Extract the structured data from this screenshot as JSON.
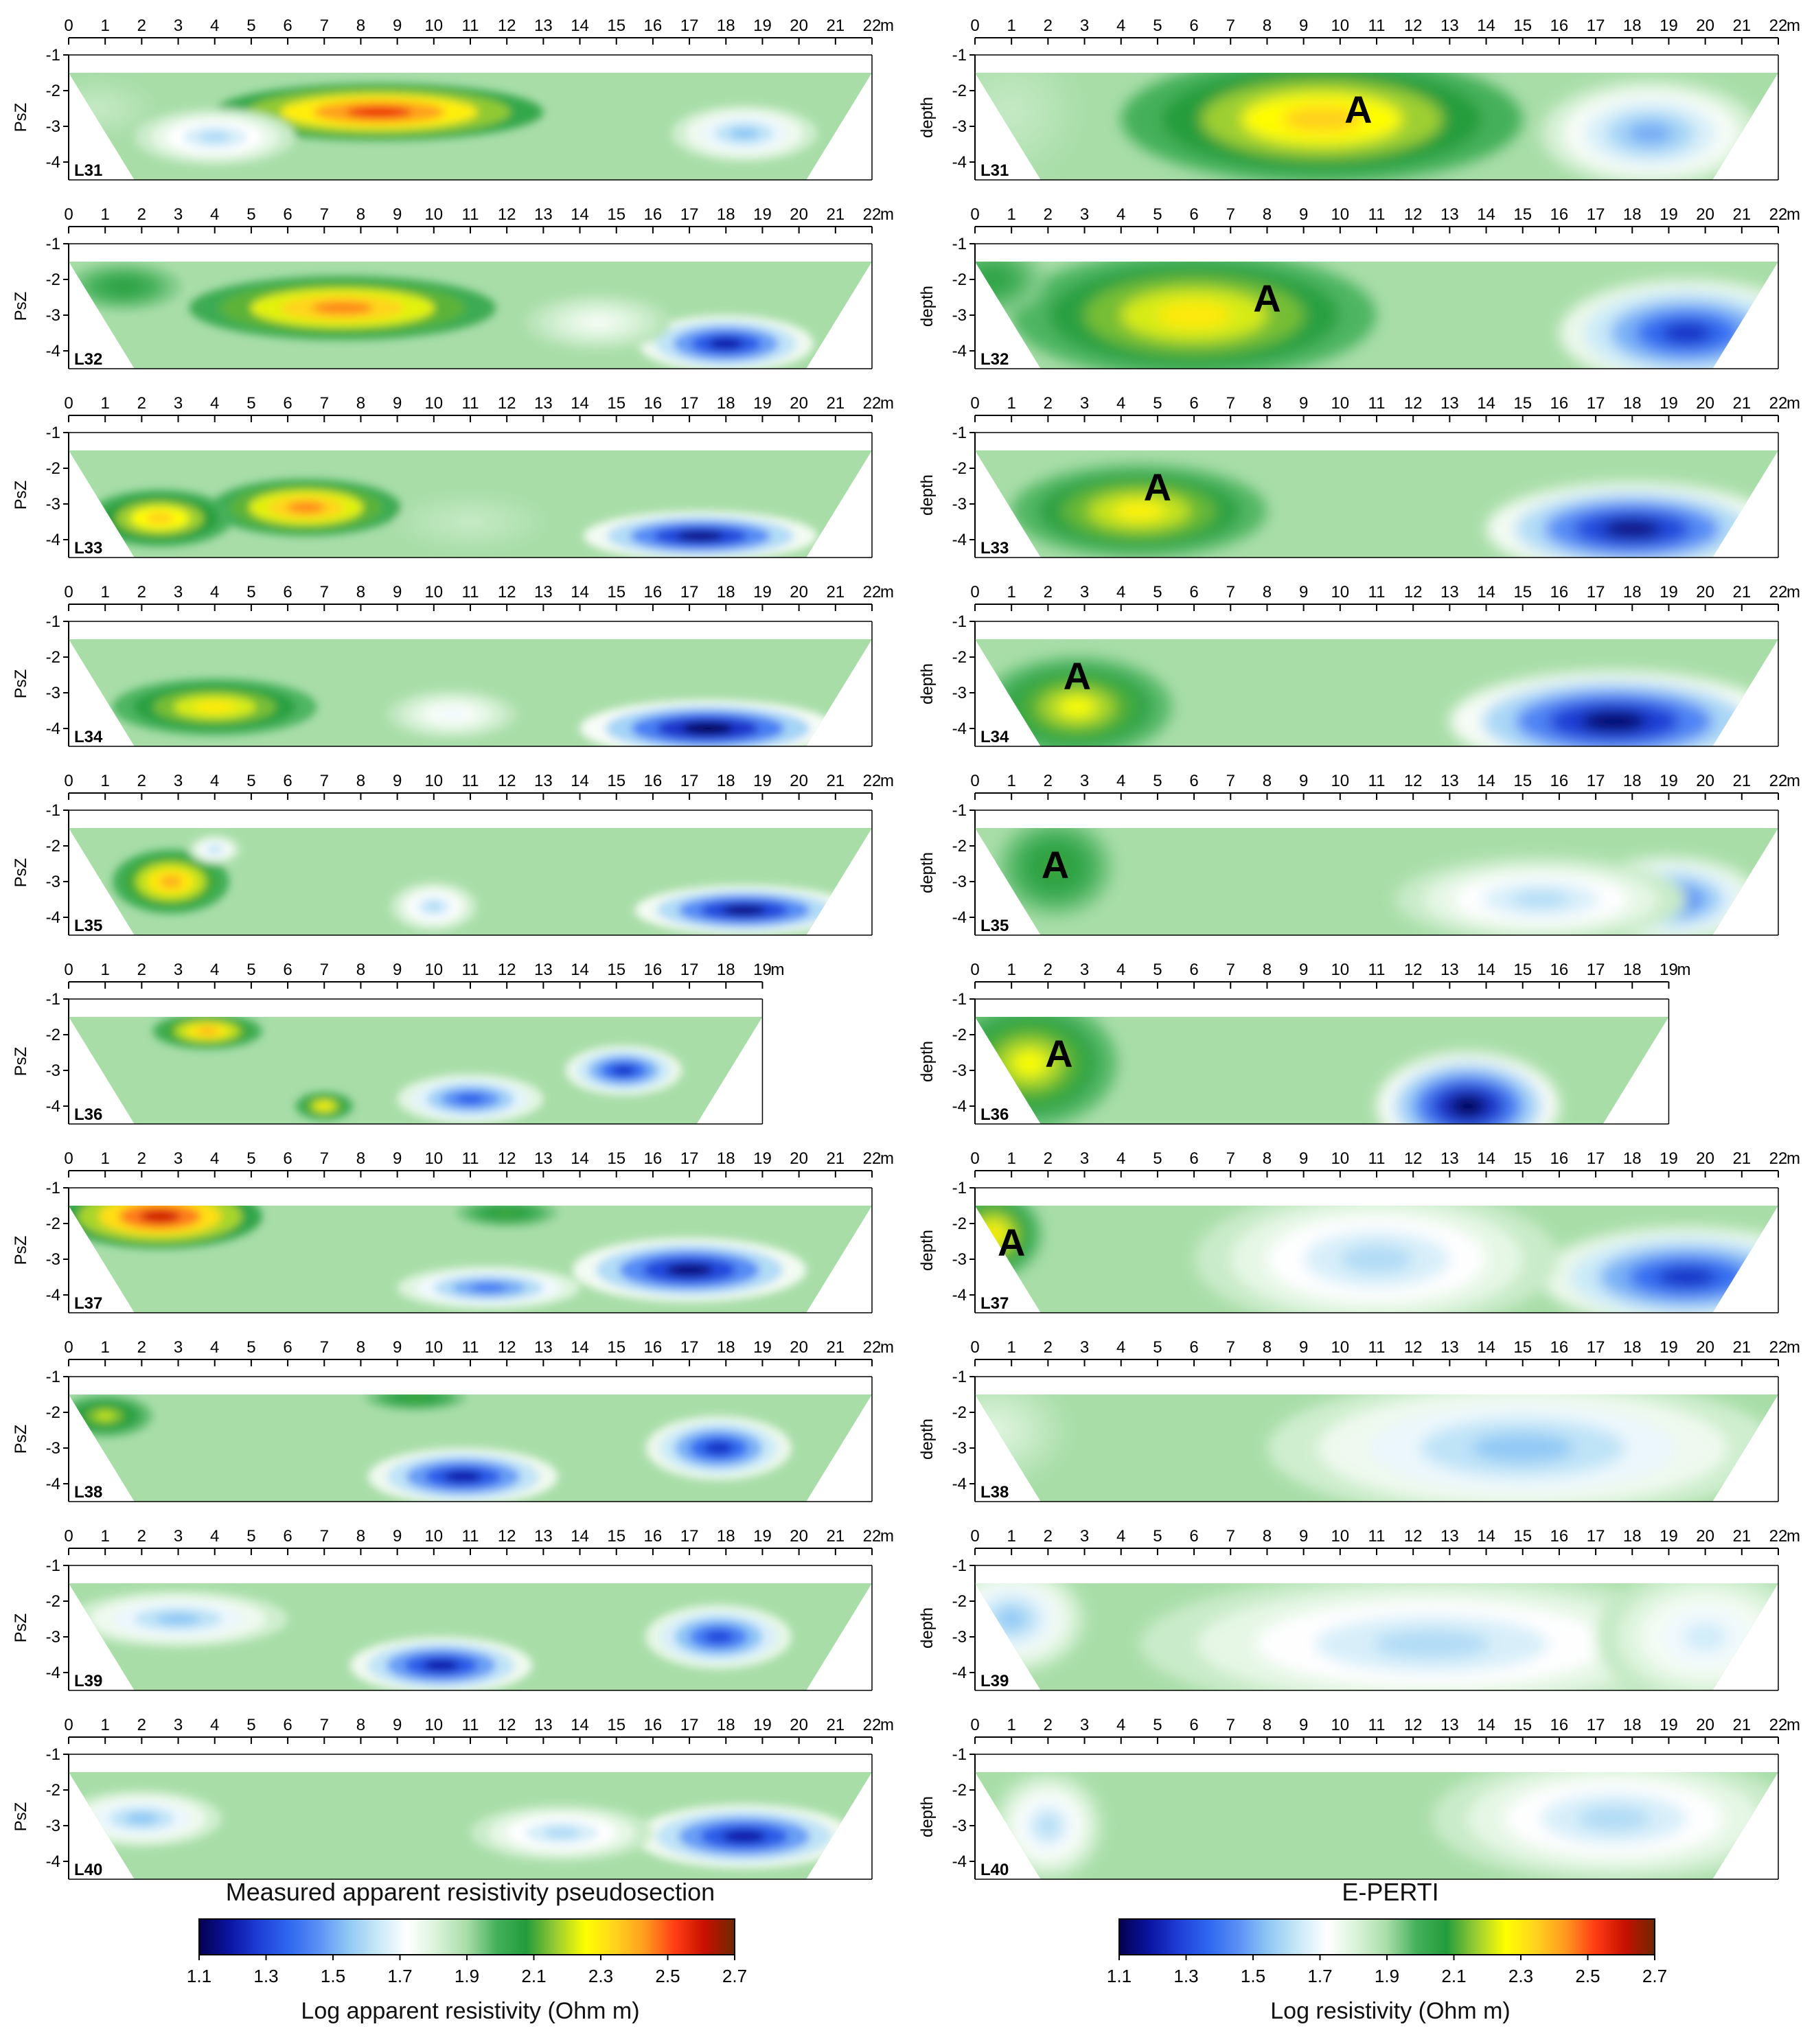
{
  "columns": [
    {
      "id": "left",
      "depth_label": "PsZ",
      "max_x": 22,
      "unit": "m",
      "title": "Measured apparent resistivity pseudosection",
      "colorbar_label": "Log apparent resistivity (Ohm m)"
    },
    {
      "id": "right",
      "depth_label": "depth",
      "max_x": 22,
      "unit": "m",
      "title": "E-PERTI",
      "colorbar_label": "Log resistivity (Ohm m)"
    }
  ],
  "depth_ticks": [
    "-1",
    "-2",
    "-3",
    "-4"
  ],
  "colorbar_ticks": [
    "1.1",
    "1.3",
    "1.5",
    "1.7",
    "1.9",
    "2.1",
    "2.3",
    "2.5",
    "2.7"
  ],
  "colorbar_range": [
    1.1,
    2.7
  ],
  "colorscale": [
    "#050050",
    "#0a14a0",
    "#1f3ed6",
    "#2f67f0",
    "#5a8ff5",
    "#8fc7f5",
    "#c7e8f7",
    "#ffffff",
    "#d9f2d9",
    "#a8dda8",
    "#44b05a",
    "#239c3c",
    "#9acd32",
    "#ffff00",
    "#ffd21e",
    "#ff9a1e",
    "#ff3c14",
    "#c81000",
    "#6e2800"
  ],
  "profiles": [
    {
      "label": "L31",
      "max_x": 22,
      "left": {},
      "right": {
        "marker": "A",
        "marker_x": 10.5
      }
    },
    {
      "label": "L32",
      "max_x": 22,
      "left": {},
      "right": {
        "marker": "A",
        "marker_x": 8
      }
    },
    {
      "label": "L33",
      "max_x": 22,
      "left": {},
      "right": {
        "marker": "A",
        "marker_x": 5
      }
    },
    {
      "label": "L34",
      "max_x": 22,
      "left": {},
      "right": {
        "marker": "A",
        "marker_x": 2.8
      }
    },
    {
      "label": "L35",
      "max_x": 22,
      "left": {},
      "right": {
        "marker": "A",
        "marker_x": 2.2
      }
    },
    {
      "label": "L36",
      "max_x": 19,
      "left": {},
      "right": {
        "marker": "A",
        "marker_x": 2.3
      }
    },
    {
      "label": "L37",
      "max_x": 22,
      "left": {},
      "right": {
        "marker": "A",
        "marker_x": 1
      }
    },
    {
      "label": "L38",
      "max_x": 22,
      "left": {},
      "right": {}
    },
    {
      "label": "L39",
      "max_x": 22,
      "left": {},
      "right": {}
    },
    {
      "label": "L40",
      "max_x": 22,
      "left": {},
      "right": {}
    }
  ],
  "chart_data": [
    {
      "type": "heatmap",
      "title": "Measured apparent resistivity pseudosection",
      "xlabel": "m",
      "ylabel": "PsZ",
      "colorbar_label": "Log apparent resistivity (Ohm m)",
      "series": [
        {
          "name": "L31",
          "blobs": [
            [
              8.5,
              -2.6,
              2.55,
              4.5,
              0.8
            ],
            [
              4,
              -3.3,
              1.6,
              2.2,
              0.8
            ],
            [
              18.5,
              -3.2,
              1.55,
              2,
              0.8
            ],
            [
              0.8,
              -2.5,
              1.85,
              1.5,
              0.8
            ]
          ]
        },
        {
          "name": "L32",
          "blobs": [
            [
              7.5,
              -2.8,
              2.45,
              4.2,
              0.9
            ],
            [
              1.5,
              -2.2,
              2.05,
              1.6,
              0.7
            ],
            [
              18,
              -3.8,
              1.2,
              2.4,
              0.8
            ],
            [
              14.5,
              -3.2,
              1.75,
              2,
              0.8
            ]
          ]
        },
        {
          "name": "L33",
          "blobs": [
            [
              6.5,
              -3.1,
              2.45,
              2.6,
              0.8
            ],
            [
              2.5,
              -3.4,
              2.35,
              2,
              0.8
            ],
            [
              17.3,
              -3.9,
              1.15,
              3.2,
              0.7
            ],
            [
              11,
              -3.5,
              1.85,
              2,
              0.8
            ]
          ]
        },
        {
          "name": "L34",
          "blobs": [
            [
              4,
              -3.4,
              2.3,
              2.8,
              0.8
            ],
            [
              17.5,
              -4,
              1.1,
              3.5,
              0.8
            ],
            [
              10.5,
              -3.6,
              1.7,
              1.8,
              0.7
            ]
          ]
        },
        {
          "name": "L35",
          "blobs": [
            [
              2.8,
              -3,
              2.4,
              1.6,
              0.9
            ],
            [
              10,
              -3.7,
              1.6,
              1.2,
              0.7
            ],
            [
              18.5,
              -3.8,
              1.15,
              3,
              0.7
            ],
            [
              4,
              -2.1,
              1.6,
              0.7,
              0.4
            ]
          ]
        },
        {
          "name": "L36",
          "blobs": [
            [
              3.8,
              -1.9,
              2.4,
              1.5,
              0.5
            ],
            [
              7,
              -4,
              2.3,
              0.8,
              0.4
            ],
            [
              11,
              -3.8,
              1.35,
              2,
              0.7
            ],
            [
              15.2,
              -3,
              1.25,
              1.6,
              0.7
            ]
          ]
        },
        {
          "name": "L37",
          "blobs": [
            [
              2.5,
              -1.8,
              2.6,
              2.8,
              0.9
            ],
            [
              12,
              -1.7,
              2.1,
              1.4,
              0.4
            ],
            [
              17,
              -3.3,
              1.15,
              3.2,
              0.9
            ],
            [
              11.5,
              -3.8,
              1.4,
              2.5,
              0.6
            ]
          ]
        },
        {
          "name": "L38",
          "blobs": [
            [
              1,
              -2.1,
              2.2,
              1.3,
              0.6
            ],
            [
              9.5,
              -1.6,
              2.1,
              1.4,
              0.35
            ],
            [
              10.8,
              -3.8,
              1.2,
              2.6,
              0.8
            ],
            [
              17.8,
              -3,
              1.25,
              2,
              0.9
            ]
          ]
        },
        {
          "name": "L39",
          "blobs": [
            [
              10.2,
              -3.8,
              1.2,
              2.5,
              0.8
            ],
            [
              17.8,
              -3,
              1.3,
              2,
              0.9
            ],
            [
              3,
              -2.5,
              1.55,
              3,
              0.8
            ]
          ]
        },
        {
          "name": "L40",
          "blobs": [
            [
              18.5,
              -3.3,
              1.2,
              3,
              0.9
            ],
            [
              2,
              -2.8,
              1.55,
              2.2,
              0.8
            ],
            [
              13.5,
              -3.2,
              1.6,
              2.5,
              0.8
            ]
          ]
        }
      ]
    },
    {
      "type": "heatmap",
      "title": "E-PERTI",
      "xlabel": "m",
      "ylabel": "depth",
      "colorbar_label": "Log resistivity (Ohm m)",
      "series": [
        {
          "name": "L31",
          "blobs": [
            [
              9.5,
              -2.8,
              2.35,
              5.5,
              1.8
            ],
            [
              1,
              -2.6,
              1.85,
              1.8,
              1.8
            ],
            [
              18.5,
              -3.2,
              1.5,
              3,
              1.5
            ]
          ]
        },
        {
          "name": "L32",
          "blobs": [
            [
              6,
              -3,
              2.3,
              5,
              1.8
            ],
            [
              19.5,
              -3.5,
              1.25,
              3.5,
              1.5
            ],
            [
              0.5,
              -2,
              2.05,
              1.4,
              1
            ]
          ]
        },
        {
          "name": "L33",
          "blobs": [
            [
              4.5,
              -3.2,
              2.28,
              3.5,
              1.3
            ],
            [
              18,
              -3.7,
              1.15,
              4,
              1.3
            ]
          ]
        },
        {
          "name": "L34",
          "blobs": [
            [
              2.8,
              -3.4,
              2.25,
              2.6,
              1.4
            ],
            [
              17.5,
              -3.8,
              1.12,
              4.5,
              1.4
            ]
          ]
        },
        {
          "name": "L35",
          "blobs": [
            [
              2.2,
              -2.6,
              2.1,
              1.6,
              1.4
            ],
            [
              19,
              -3.5,
              1.35,
              2.5,
              1.2
            ],
            [
              15.5,
              -3.5,
              1.6,
              4,
              1.2
            ]
          ]
        },
        {
          "name": "L36",
          "blobs": [
            [
              1.5,
              -2.8,
              2.25,
              2.4,
              1.8
            ],
            [
              13.5,
              -4,
              1.1,
              2.5,
              1.5
            ]
          ]
        },
        {
          "name": "L37",
          "blobs": [
            [
              0.5,
              -2.3,
              2.3,
              1.3,
              1.2
            ],
            [
              19.5,
              -3.5,
              1.25,
              4,
              1.4
            ],
            [
              11,
              -3,
              1.6,
              5,
              2
            ]
          ]
        },
        {
          "name": "L38",
          "blobs": [
            [
              0.5,
              -2.5,
              1.8,
              2,
              1.5
            ],
            [
              15,
              -3,
              1.55,
              7,
              2
            ]
          ]
        },
        {
          "name": "L39",
          "blobs": [
            [
              1,
              -2.5,
              1.55,
              2,
              1.5
            ],
            [
              12.5,
              -3.2,
              1.6,
              8,
              2
            ],
            [
              20,
              -3,
              1.65,
              3,
              2
            ]
          ]
        },
        {
          "name": "L40",
          "blobs": [
            [
              2,
              -3,
              1.6,
              1.5,
              1.5
            ],
            [
              17.5,
              -2.8,
              1.6,
              5,
              1.8
            ]
          ]
        }
      ]
    }
  ]
}
